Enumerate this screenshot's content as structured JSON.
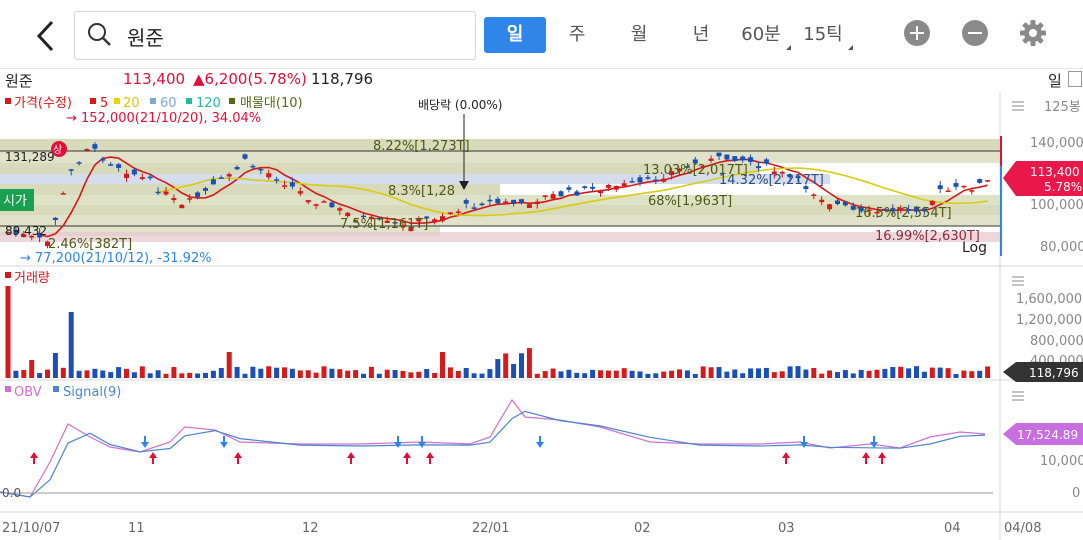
{
  "header": {
    "search_value": "원준",
    "periods": [
      "일",
      "주",
      "월",
      "년",
      "60분",
      "15틱"
    ],
    "active_period": "일",
    "icons": {
      "back": "back-arrow-icon",
      "search": "search-icon",
      "zoom_in": "plus-circle-icon",
      "zoom_out": "minus-circle-icon",
      "settings": "gear-icon"
    }
  },
  "quote": {
    "name": "원준",
    "price": "113,400",
    "change": "▲6,200(5.78%)",
    "volume": "118,796",
    "period_label": "일",
    "up_color": "#e0103a"
  },
  "price_panel": {
    "legend_price": "가격(수정)",
    "ma": [
      {
        "label": "5",
        "color": "#d41a1a"
      },
      {
        "label": "20",
        "color": "#e5d800"
      },
      {
        "label": "60",
        "color": "#7fa7d9"
      },
      {
        "label": "120",
        "color": "#27b8a8"
      }
    ],
    "legend_vp": "매물대(10)",
    "vp_color": "#7a7a1a",
    "high_note": "→ 152,000(21/10/20), 34.04%",
    "low_note": "→ 77,200(21/10/12), -31.92%",
    "dividend": "배당락 (0.00%)",
    "ref_high": "131,289",
    "ref_low": "89,432",
    "open_tag": "시가",
    "upper_limit_tag": "상",
    "log_label": "Log",
    "vp_labels": [
      "8.22%[1,273T]",
      "13.03%[2,017T]",
      "14.32%[2,217T]",
      "8.3%[1,28",
      "68%[1,963T]",
      "7.5%[1,161T]",
      "16.5%[2,554T]",
      "2.46%[382T]",
      "16.99%[2,630T]"
    ],
    "axis_labels": [
      "125봉",
      "140,000",
      "100,000",
      "80,000"
    ],
    "price_tag": "113,400",
    "price_tag_pct": "5.78%"
  },
  "volume_panel": {
    "legend": "거래량",
    "axis_labels": [
      "1,600,000",
      "1,200,000",
      "800,000",
      "400,000"
    ],
    "volume_tag": "118,796"
  },
  "obv_panel": {
    "legend_obv": "OBV",
    "legend_signal": "Signal(9)",
    "obv_color": "#d070d0",
    "signal_color": "#4a86d0",
    "zero_label": "0.0",
    "axis_labels": [
      "10,000",
      "0"
    ],
    "obv_tag": "17,524.89"
  },
  "x_axis": [
    "21/10/07",
    "11",
    "12",
    "22/01",
    "02",
    "03",
    "04",
    "04/08"
  ]
}
